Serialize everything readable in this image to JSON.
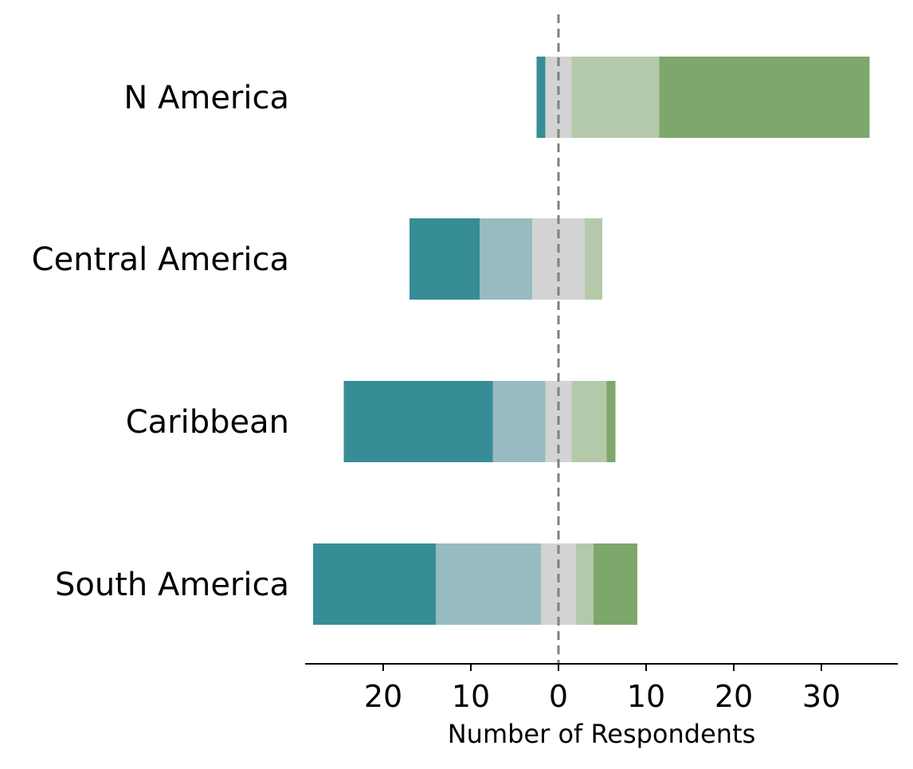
{
  "chart_data": {
    "type": "bar",
    "orientation": "horizontal",
    "stacked": "diverging",
    "title": "",
    "xlabel": "Number of Respondents",
    "ylabel": "",
    "categories": [
      "N America",
      "Central America",
      "Caribbean",
      "South America"
    ],
    "xlim": [
      -29,
      39
    ],
    "xticks": [
      -20,
      -10,
      0,
      10,
      20,
      30
    ],
    "xtick_labels": [
      "20",
      "10",
      "0",
      "10",
      "20",
      "30"
    ],
    "zero_line": "dashed",
    "legend": "none",
    "grid": false,
    "segment_colors": [
      "#368d96",
      "#97bbc0",
      "#d3d3d3",
      "#b4c9a9",
      "#7ea76c"
    ],
    "series": [
      {
        "values": [
          1,
          8,
          17,
          14
        ]
      },
      {
        "values": [
          0,
          6,
          6,
          12
        ]
      },
      {
        "values": [
          3,
          6,
          3,
          4
        ]
      },
      {
        "values": [
          10,
          2,
          4,
          2
        ]
      },
      {
        "values": [
          24,
          0,
          1,
          5
        ]
      }
    ]
  }
}
